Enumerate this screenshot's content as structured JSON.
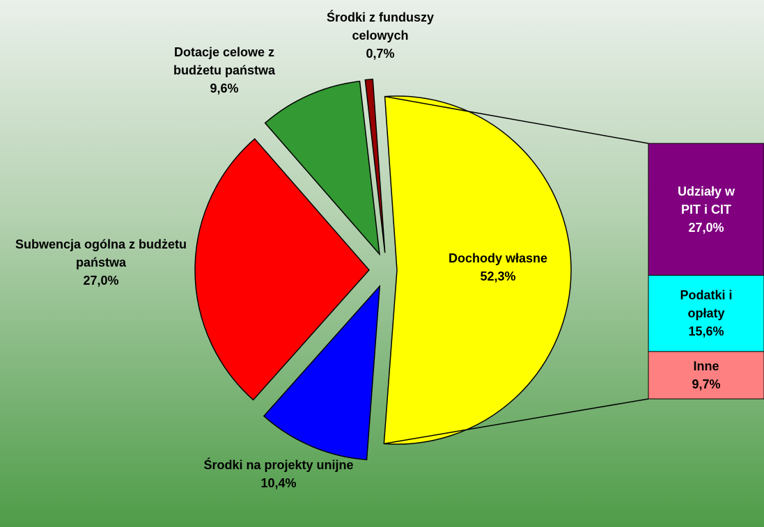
{
  "chart_data": {
    "type": "pie-of-bar",
    "categories": [
      "Dochody własne",
      "Środki na projekty unijne",
      "Subwencja ogólna z budżetu państwa",
      "Dotacje celowe z budżetu państwa",
      "Środki z funduszy celowych"
    ],
    "values": [
      52.3,
      10.4,
      27.0,
      9.6,
      0.7
    ],
    "value_labels": [
      "52,3%",
      "10,4%",
      "27,0%",
      "9,6%",
      "0,7%"
    ],
    "colors": [
      "#ffff00",
      "#0000ff",
      "#ff0000",
      "#339933",
      "#990000"
    ],
    "bar": {
      "categories": [
        "Udziały w PIT i CIT",
        "Podatki i opłaty",
        "Inne"
      ],
      "values": [
        27.0,
        15.6,
        9.7
      ],
      "value_labels": [
        "27,0%",
        "15,6%",
        "9,7%"
      ],
      "colors": [
        "#800080",
        "#00ffff",
        "#ff8080"
      ]
    }
  }
}
